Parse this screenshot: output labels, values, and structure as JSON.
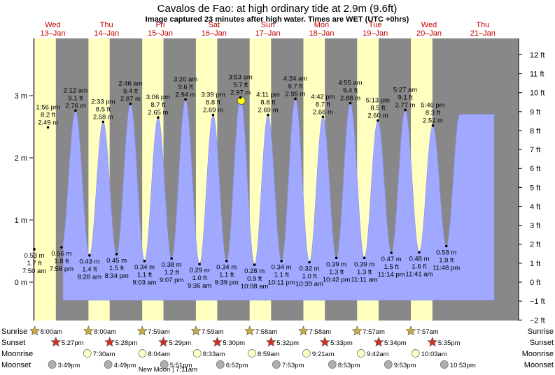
{
  "header": {
    "title": "Cavalos de Fao: at high  ordinary tide at 2.9m (9.6ft)",
    "subtitle": "Image captured 23 minutes after high water. Times are WET (UTC +0hrs)"
  },
  "colors": {
    "night": "#888888",
    "day": "#ffffc0",
    "water": "#a0a8ff",
    "water_edge": "#8890ee",
    "day_text": "#c00000",
    "now_marker": "#ffff00"
  },
  "chart_data": {
    "type": "area",
    "y_unit_left": "m",
    "y_unit_right": "ft",
    "ylim_m": [
      -0.65,
      3.9
    ],
    "ticks_m": [
      "3 m",
      "2 m",
      "1 m",
      "0 m"
    ],
    "tick_values_m": [
      3,
      2,
      1,
      0
    ],
    "ticks_ft": [
      "12 ft",
      "11 ft",
      "10 ft",
      "9 ft",
      "8 ft",
      "7 ft",
      "6 ft",
      "5 ft",
      "4 ft",
      "3 ft",
      "2 ft",
      "1 ft",
      "0 ft",
      "−1 ft",
      "−2 ft"
    ],
    "tick_values_ft": [
      12,
      11,
      10,
      9,
      8,
      7,
      6,
      5,
      4,
      3,
      2,
      1,
      0,
      -1,
      -2
    ],
    "days": [
      {
        "name": "Wed",
        "date": "13–Jan"
      },
      {
        "name": "Thu",
        "date": "14–Jan"
      },
      {
        "name": "Fri",
        "date": "15–Jan"
      },
      {
        "name": "Sat",
        "date": "16–Jan"
      },
      {
        "name": "Sun",
        "date": "17–Jan"
      },
      {
        "name": "Mon",
        "date": "18–Jan"
      },
      {
        "name": "Tue",
        "date": "19–Jan"
      },
      {
        "name": "Wed",
        "date": "20–Jan"
      },
      {
        "name": "Thu",
        "date": "21–Jan"
      }
    ],
    "daylight": [
      {
        "sunrise": "8:00",
        "sunset": "17:27"
      },
      {
        "sunrise": "8:00",
        "sunset": "17:28"
      },
      {
        "sunrise": "7:59",
        "sunset": "17:29"
      },
      {
        "sunrise": "7:59",
        "sunset": "17:30"
      },
      {
        "sunrise": "7:58",
        "sunset": "17:32"
      },
      {
        "sunrise": "7:58",
        "sunset": "17:33"
      },
      {
        "sunrise": "7:57",
        "sunset": "17:34"
      },
      {
        "sunrise": "7:57",
        "sunset": "17:35"
      }
    ],
    "tides": [
      {
        "type": "low",
        "day": 0,
        "time": "7:50",
        "m": 0.53,
        "m_label": "0.53 m",
        "ft_label": "1.7 ft",
        "time_label": "7:50 am"
      },
      {
        "type": "high",
        "day": 0,
        "time": "13:56",
        "m": 2.49,
        "m_label": "2.49 m",
        "ft_label": "8.2 ft",
        "time_label": "1:56 pm"
      },
      {
        "type": "low",
        "day": 0,
        "time": "19:58",
        "m": 0.56,
        "m_label": "0.56 m",
        "ft_label": "1.8 ft",
        "time_label": "7:58 pm"
      },
      {
        "type": "high",
        "day": 1,
        "time": "2:12",
        "m": 2.76,
        "m_label": "2.76 m",
        "ft_label": "9.1 ft",
        "time_label": "2:12 am"
      },
      {
        "type": "low",
        "day": 1,
        "time": "8:28",
        "m": 0.43,
        "m_label": "0.43 m",
        "ft_label": "1.4 ft",
        "time_label": "8:28 am"
      },
      {
        "type": "high",
        "day": 1,
        "time": "14:33",
        "m": 2.58,
        "m_label": "2.58 m",
        "ft_label": "8.5 ft",
        "time_label": "2:33 pm"
      },
      {
        "type": "low",
        "day": 1,
        "time": "20:34",
        "m": 0.45,
        "m_label": "0.45 m",
        "ft_label": "1.5 ft",
        "time_label": "8:34 pm"
      },
      {
        "type": "high",
        "day": 2,
        "time": "2:46",
        "m": 2.87,
        "m_label": "2.87 m",
        "ft_label": "9.4 ft",
        "time_label": "2:46 am"
      },
      {
        "type": "low",
        "day": 2,
        "time": "9:03",
        "m": 0.34,
        "m_label": "0.34 m",
        "ft_label": "1.1 ft",
        "time_label": "9:03 am"
      },
      {
        "type": "high",
        "day": 2,
        "time": "15:06",
        "m": 2.65,
        "m_label": "2.65 m",
        "ft_label": "8.7 ft",
        "time_label": "3:06 pm"
      },
      {
        "type": "low",
        "day": 2,
        "time": "21:07",
        "m": 0.38,
        "m_label": "0.38 m",
        "ft_label": "1.2 ft",
        "time_label": "9:07 pm"
      },
      {
        "type": "high",
        "day": 3,
        "time": "3:20",
        "m": 2.94,
        "m_label": "2.94 m",
        "ft_label": "9.6 ft",
        "time_label": "3:20 am"
      },
      {
        "type": "low",
        "day": 3,
        "time": "9:36",
        "m": 0.29,
        "m_label": "0.29 m",
        "ft_label": "1.0 ft",
        "time_label": "9:36 am"
      },
      {
        "type": "high",
        "day": 3,
        "time": "15:39",
        "m": 2.69,
        "m_label": "2.69 m",
        "ft_label": "8.8 ft",
        "time_label": "3:39 pm"
      },
      {
        "type": "low",
        "day": 3,
        "time": "21:39",
        "m": 0.34,
        "m_label": "0.34 m",
        "ft_label": "1.1 ft",
        "time_label": "9:39 pm"
      },
      {
        "type": "high",
        "day": 4,
        "time": "3:53",
        "m": 2.97,
        "m_label": "2.97 m",
        "ft_label": "9.7 ft",
        "time_label": "3:53 am"
      },
      {
        "type": "low",
        "day": 4,
        "time": "10:08",
        "m": 0.28,
        "m_label": "0.28 m",
        "ft_label": "0.9 ft",
        "time_label": "10:08 am"
      },
      {
        "type": "high",
        "day": 4,
        "time": "16:11",
        "m": 2.69,
        "m_label": "2.69 m",
        "ft_label": "8.8 ft",
        "time_label": "4:11 pm"
      },
      {
        "type": "low",
        "day": 4,
        "time": "22:11",
        "m": 0.34,
        "m_label": "0.34 m",
        "ft_label": "1.1 ft",
        "time_label": "10:11 pm"
      },
      {
        "type": "high",
        "day": 5,
        "time": "4:24",
        "m": 2.95,
        "m_label": "2.95 m",
        "ft_label": "9.7 ft",
        "time_label": "4:24 am"
      },
      {
        "type": "low",
        "day": 5,
        "time": "10:39",
        "m": 0.32,
        "m_label": "0.32 m",
        "ft_label": "1.0 ft",
        "time_label": "10:39 am"
      },
      {
        "type": "high",
        "day": 5,
        "time": "16:42",
        "m": 2.66,
        "m_label": "2.66 m",
        "ft_label": "8.7 ft",
        "time_label": "4:42 pm"
      },
      {
        "type": "low",
        "day": 5,
        "time": "22:42",
        "m": 0.39,
        "m_label": "0.39 m",
        "ft_label": "1.3 ft",
        "time_label": "10:42 pm"
      },
      {
        "type": "high",
        "day": 6,
        "time": "4:55",
        "m": 2.88,
        "m_label": "2.88 m",
        "ft_label": "9.4 ft",
        "time_label": "4:55 am"
      },
      {
        "type": "low",
        "day": 6,
        "time": "11:11",
        "m": 0.39,
        "m_label": "0.39 m",
        "ft_label": "1.3 ft",
        "time_label": "11:11 am"
      },
      {
        "type": "high",
        "day": 6,
        "time": "17:13",
        "m": 2.6,
        "m_label": "2.60 m",
        "ft_label": "8.5 ft",
        "time_label": "5:13 pm"
      },
      {
        "type": "low",
        "day": 6,
        "time": "23:14",
        "m": 0.47,
        "m_label": "0.47 m",
        "ft_label": "1.5 ft",
        "time_label": "11:14 pm"
      },
      {
        "type": "high",
        "day": 7,
        "time": "5:27",
        "m": 2.77,
        "m_label": "2.77 m",
        "ft_label": "9.1 ft",
        "time_label": "5:27 am"
      },
      {
        "type": "low",
        "day": 7,
        "time": "11:41",
        "m": 0.48,
        "m_label": "0.48 m",
        "ft_label": "1.6 ft",
        "time_label": "11:41 am"
      },
      {
        "type": "high",
        "day": 7,
        "time": "17:46",
        "m": 2.52,
        "m_label": "2.52 m",
        "ft_label": "8.3 ft",
        "time_label": "5:46 pm"
      },
      {
        "type": "low",
        "day": 7,
        "time": "23:48",
        "m": 0.58,
        "m_label": "0.58 m",
        "ft_label": "1.9 ft",
        "time_label": "11:48 pm"
      }
    ],
    "current": {
      "day": 4,
      "time": "4:16",
      "m": 2.92
    },
    "events": {
      "sunrise": [
        {
          "day": 0,
          "time": "8:00",
          "label": "8:00am"
        },
        {
          "day": 1,
          "time": "8:00",
          "label": "8:00am"
        },
        {
          "day": 2,
          "time": "7:59",
          "label": "7:59am"
        },
        {
          "day": 3,
          "time": "7:59",
          "label": "7:59am"
        },
        {
          "day": 4,
          "time": "7:58",
          "label": "7:58am"
        },
        {
          "day": 5,
          "time": "7:58",
          "label": "7:58am"
        },
        {
          "day": 6,
          "time": "7:57",
          "label": "7:57am"
        },
        {
          "day": 7,
          "time": "7:57",
          "label": "7:57am"
        }
      ],
      "sunset": [
        {
          "day": 0,
          "time": "17:27",
          "label": "5:27pm"
        },
        {
          "day": 1,
          "time": "17:28",
          "label": "5:28pm"
        },
        {
          "day": 2,
          "time": "17:29",
          "label": "5:29pm"
        },
        {
          "day": 3,
          "time": "17:30",
          "label": "5:30pm"
        },
        {
          "day": 4,
          "time": "17:32",
          "label": "5:32pm"
        },
        {
          "day": 5,
          "time": "17:33",
          "label": "5:33pm"
        },
        {
          "day": 6,
          "time": "17:34",
          "label": "5:34pm"
        },
        {
          "day": 7,
          "time": "17:35",
          "label": "5:35pm"
        }
      ],
      "moonrise": [
        {
          "day": 1,
          "time": "7:30",
          "label": "7:30am"
        },
        {
          "day": 2,
          "time": "8:04",
          "label": "8:04am"
        },
        {
          "day": 3,
          "time": "8:33",
          "label": "8:33am"
        },
        {
          "day": 4,
          "time": "8:59",
          "label": "8:59am"
        },
        {
          "day": 5,
          "time": "9:21",
          "label": "9:21am"
        },
        {
          "day": 6,
          "time": "9:42",
          "label": "9:42am"
        },
        {
          "day": 7,
          "time": "10:03",
          "label": "10:03am"
        }
      ],
      "moonset": [
        {
          "day": 0,
          "time": "15:49",
          "label": "3:49pm"
        },
        {
          "day": 1,
          "time": "16:49",
          "label": "4:49pm"
        },
        {
          "day": 2,
          "time": "17:51",
          "label": "5:51pm"
        },
        {
          "day": 3,
          "time": "18:52",
          "label": "6:52pm"
        },
        {
          "day": 4,
          "time": "19:53",
          "label": "7:53pm"
        },
        {
          "day": 5,
          "time": "20:53",
          "label": "8:53pm"
        },
        {
          "day": 6,
          "time": "21:53",
          "label": "9:53pm"
        },
        {
          "day": 7,
          "time": "22:53",
          "label": "10:53pm"
        }
      ]
    },
    "row_labels": {
      "sunrise": "Sunrise",
      "sunset": "Sunset",
      "moonrise": "Moonrise",
      "moonset": "Moonset"
    },
    "new_moon_label": "New Moon | 7:11am"
  }
}
